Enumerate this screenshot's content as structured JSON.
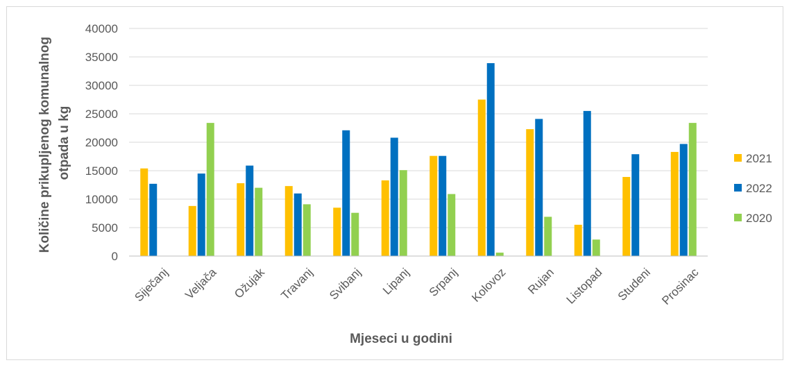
{
  "chart_data": {
    "type": "bar",
    "title": "",
    "xlabel": "Mjeseci u godini",
    "ylabel_lines": [
      "Količine prikupljenog komunalnog",
      "otpada u kg"
    ],
    "ylim": [
      0,
      40000
    ],
    "yticks": [
      0,
      5000,
      10000,
      15000,
      20000,
      25000,
      30000,
      35000,
      40000
    ],
    "grid": true,
    "legend_position": "right",
    "categories": [
      "Siječanj",
      "Veljača",
      "Ožujak",
      "Travanj",
      "Svibanj",
      "Lipanj",
      "Srpanj",
      "Kolovoz",
      "Rujan",
      "Listopad",
      "Studeni",
      "Prosinac"
    ],
    "series": [
      {
        "name": "2021",
        "color": "#FFC000",
        "values": [
          15400,
          8800,
          12800,
          12300,
          8500,
          13300,
          17600,
          27500,
          22300,
          5500,
          13900,
          18300
        ]
      },
      {
        "name": "2022",
        "color": "#0070C0",
        "values": [
          12700,
          14500,
          15900,
          11000,
          22100,
          20800,
          17600,
          33900,
          24100,
          25500,
          17900,
          19700
        ]
      },
      {
        "name": "2020",
        "color": "#92D050",
        "values": [
          null,
          23400,
          12000,
          9100,
          7600,
          15100,
          10900,
          600,
          6900,
          2900,
          null,
          23400
        ]
      }
    ]
  }
}
